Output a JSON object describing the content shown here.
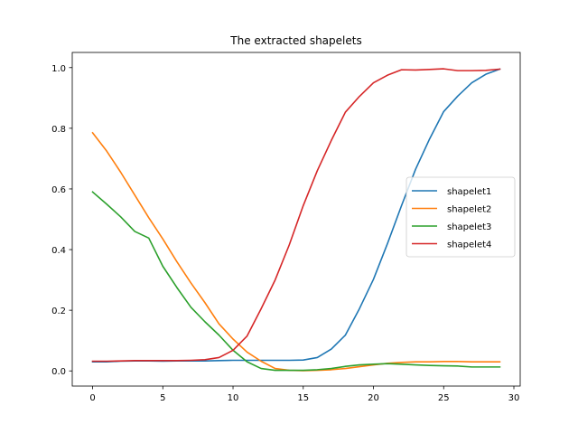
{
  "chart_data": {
    "type": "line",
    "title": "The extracted shapelets",
    "xlabel": "",
    "ylabel": "",
    "xlim": [
      -1.45,
      30.45
    ],
    "ylim": [
      -0.05,
      1.05
    ],
    "xticks": [
      0,
      5,
      10,
      15,
      20,
      25,
      30
    ],
    "yticks": [
      0.0,
      0.2,
      0.4,
      0.6,
      0.8,
      1.0
    ],
    "xtick_labels": [
      "0",
      "5",
      "10",
      "15",
      "20",
      "25",
      "30"
    ],
    "ytick_labels": [
      "0.0",
      "0.2",
      "0.4",
      "0.6",
      "0.8",
      "1.0"
    ],
    "grid": false,
    "legend_position": "center-right",
    "x": [
      0,
      1,
      2,
      3,
      4,
      5,
      6,
      7,
      8,
      9,
      10,
      11,
      12,
      13,
      14,
      15,
      16,
      17,
      18,
      19,
      20,
      21,
      22,
      23,
      24,
      25,
      26,
      27,
      28,
      29
    ],
    "series": [
      {
        "name": "shapelet1",
        "color": "#1f77b4",
        "values": [
          0.03,
          0.03,
          0.032,
          0.033,
          0.033,
          0.032,
          0.033,
          0.033,
          0.033,
          0.034,
          0.035,
          0.035,
          0.035,
          0.035,
          0.035,
          0.036,
          0.044,
          0.072,
          0.118,
          0.205,
          0.302,
          0.42,
          0.545,
          0.665,
          0.765,
          0.855,
          0.906,
          0.95,
          0.978,
          0.995
        ]
      },
      {
        "name": "shapelet2",
        "color": "#ff7f0e",
        "values": [
          0.785,
          0.725,
          0.655,
          0.58,
          0.505,
          0.435,
          0.36,
          0.29,
          0.225,
          0.155,
          0.105,
          0.062,
          0.032,
          0.008,
          0.002,
          0.001,
          0.002,
          0.004,
          0.008,
          0.014,
          0.02,
          0.025,
          0.028,
          0.03,
          0.03,
          0.031,
          0.031,
          0.03,
          0.03,
          0.03
        ]
      },
      {
        "name": "shapelet3",
        "color": "#2ca02c",
        "values": [
          0.59,
          0.55,
          0.508,
          0.46,
          0.438,
          0.345,
          0.275,
          0.21,
          0.162,
          0.118,
          0.068,
          0.03,
          0.008,
          0.002,
          0.002,
          0.002,
          0.004,
          0.008,
          0.015,
          0.02,
          0.022,
          0.024,
          0.022,
          0.02,
          0.018,
          0.017,
          0.016,
          0.013,
          0.013,
          0.013
        ]
      },
      {
        "name": "shapelet4",
        "color": "#d62728",
        "values": [
          0.032,
          0.032,
          0.033,
          0.034,
          0.034,
          0.034,
          0.034,
          0.035,
          0.037,
          0.044,
          0.068,
          0.115,
          0.205,
          0.3,
          0.415,
          0.545,
          0.66,
          0.76,
          0.853,
          0.905,
          0.95,
          0.975,
          0.993,
          0.992,
          0.994,
          0.996,
          0.99,
          0.99,
          0.991,
          0.995
        ]
      }
    ]
  }
}
